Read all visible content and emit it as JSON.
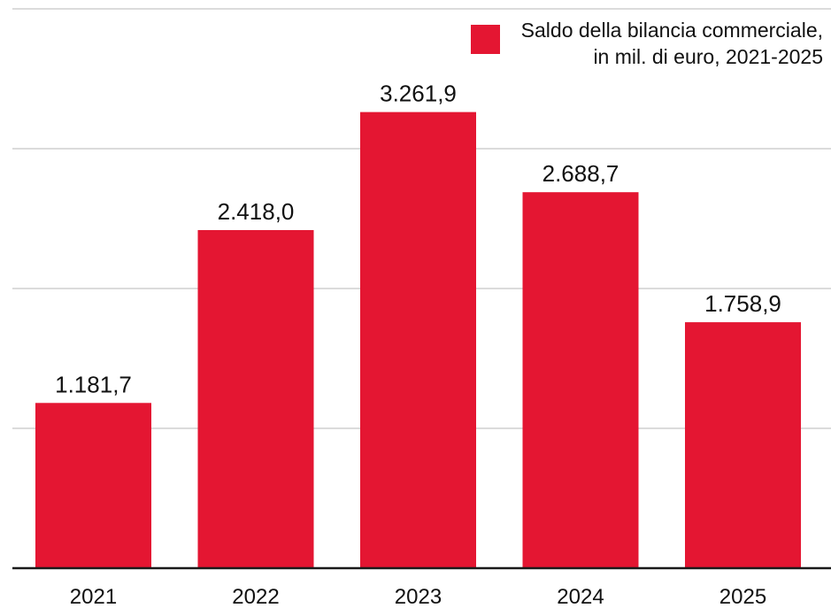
{
  "chart_data": {
    "type": "bar",
    "categories": [
      "2021",
      "2022",
      "2023",
      "2024",
      "2025"
    ],
    "values": [
      1181.7,
      2418.0,
      3261.9,
      2688.7,
      1758.9
    ],
    "value_labels": [
      "1.181,7",
      "2.418,0",
      "3.261,9",
      "2.688,7",
      "1.758,9"
    ],
    "legend": {
      "line1": "Saldo della bilancia commerciale,",
      "line2": "in mil. di euro, 2021-2025",
      "placement": "top-right"
    },
    "ylim": [
      0,
      4000
    ],
    "gridlines": [
      1000,
      2000,
      3000,
      4000
    ],
    "grid": true,
    "y_tick_labels_shown": false,
    "bar_color": "#e41632",
    "title": "",
    "xlabel": "",
    "ylabel": ""
  }
}
